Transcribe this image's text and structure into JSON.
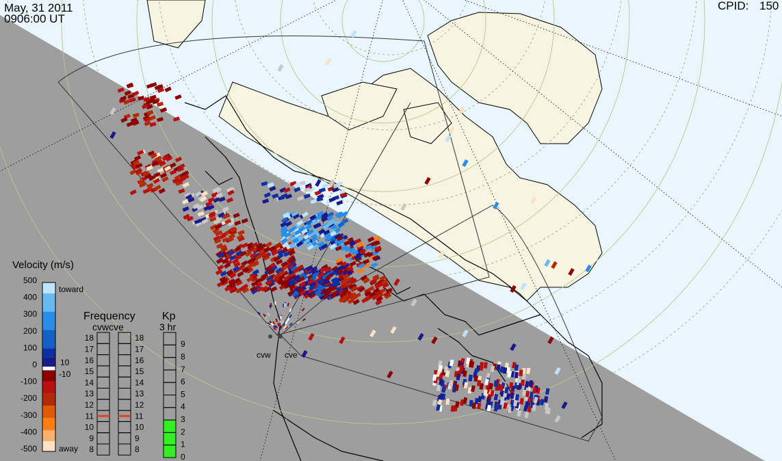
{
  "header": {
    "date": "May, 31 2011",
    "time": "0906:00 UT",
    "cpid_label": "CPID:",
    "cpid_value": "150"
  },
  "radars": [
    "cvw",
    "cve"
  ],
  "velocity_scale": {
    "title": "Velocity (m/s)",
    "ticks": [
      "500",
      "400",
      "300",
      "200",
      "100",
      "0",
      "-100",
      "-200",
      "-300",
      "-400",
      "-500"
    ],
    "toward_label": "toward",
    "away_label": "away",
    "inner_labels": [
      "10",
      "-10"
    ],
    "colors": [
      "#fde1c3",
      "#fbb06c",
      "#f97d12",
      "#e05a0a",
      "#b52a06",
      "#8b0000",
      "#b80f0f",
      "#ffffff",
      "#1a1a8a",
      "#0d2fa3",
      "#1560c8",
      "#2a8ee6",
      "#67b9f0",
      "#bde4fb"
    ]
  },
  "frequency": {
    "title": "Frequency",
    "subtitle": "cvwcve",
    "ticks": [
      "18",
      "17",
      "16",
      "15",
      "14",
      "13",
      "12",
      "11",
      "10",
      "9",
      "8"
    ],
    "cvw_mhz": 11,
    "cve_mhz": 11,
    "marker_color": "#e8401c"
  },
  "kp": {
    "title": "Kp",
    "subtitle": "3 hr",
    "ticks": [
      "9",
      "8",
      "7",
      "6",
      "5",
      "4",
      "3",
      "2",
      "1",
      "0"
    ],
    "value": 3,
    "fill_color": "#33ee22"
  },
  "colors": {
    "night": "#9e9e9e",
    "day_ocean": "#e9f6fd",
    "day_land": "#f7f4e1",
    "scatter_gray": "#c8c8c8"
  }
}
